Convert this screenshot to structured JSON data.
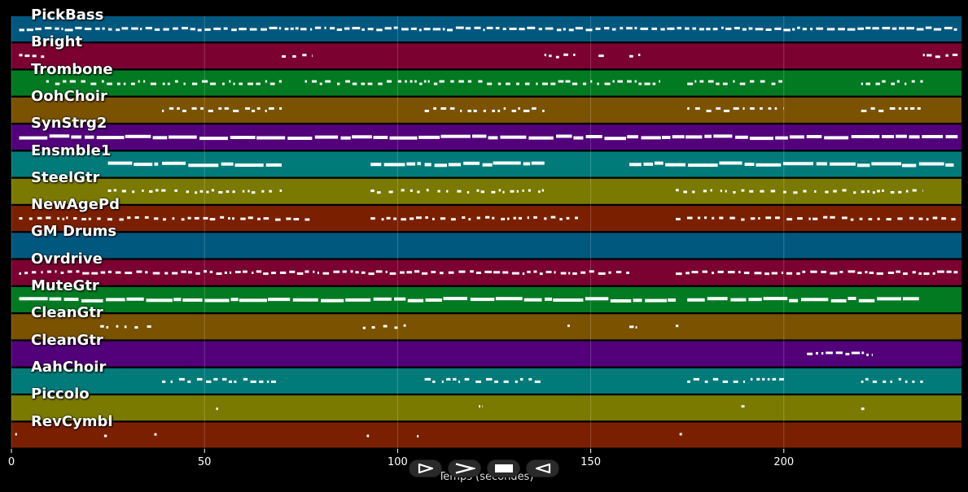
{
  "tracks": [
    {
      "name": "PickBass",
      "color": "#01587F",
      "density": 0.8,
      "rows": 1,
      "seed": 1,
      "notes": [
        [
          2,
          245
        ]
      ]
    },
    {
      "name": "Bright",
      "color": "#7A0130",
      "density": 0.55,
      "rows": 1,
      "seed": 2,
      "notes": [
        [
          2,
          9
        ],
        [
          70,
          78
        ],
        [
          138,
          146
        ],
        [
          152,
          154
        ],
        [
          160,
          163
        ],
        [
          236,
          245
        ]
      ]
    },
    {
      "name": "Trombone",
      "color": "#017A22",
      "density": 0.55,
      "rows": 2,
      "seed": 3,
      "notes": [
        [
          9,
          35
        ],
        [
          36,
          70
        ],
        [
          76,
          125
        ],
        [
          126,
          168
        ],
        [
          175,
          200
        ],
        [
          220,
          236
        ]
      ]
    },
    {
      "name": "OohChoir",
      "color": "#7A5200",
      "density": 0.55,
      "rows": 2,
      "seed": 4,
      "notes": [
        [
          39,
          70
        ],
        [
          107,
          138
        ],
        [
          175,
          200
        ],
        [
          220,
          236
        ]
      ]
    },
    {
      "name": "SynStrg2",
      "color": "#52017A",
      "density": 0.95,
      "rows": 1,
      "seed": 5,
      "notes": [
        [
          2,
          245
        ]
      ]
    },
    {
      "name": "Ensmble1",
      "color": "#017A7A",
      "density": 0.9,
      "rows": 1,
      "seed": 6,
      "notes": [
        [
          25,
          38
        ],
        [
          39,
          70
        ],
        [
          93,
          106
        ],
        [
          107,
          138
        ],
        [
          160,
          244
        ]
      ]
    },
    {
      "name": "SteelGtr",
      "color": "#7A7A01",
      "density": 0.35,
      "rows": 1,
      "seed": 7,
      "notes": [
        [
          25,
          70
        ],
        [
          93,
          138
        ],
        [
          172,
          236
        ]
      ]
    },
    {
      "name": "NewAgePd",
      "color": "#7A2001",
      "density": 0.5,
      "rows": 1,
      "seed": 8,
      "notes": [
        [
          2,
          78
        ],
        [
          93,
          148
        ],
        [
          172,
          245
        ]
      ]
    },
    {
      "name": "GM Drums",
      "color": "#01587F",
      "density": 0.0,
      "rows": 1,
      "seed": 9,
      "notes": []
    },
    {
      "name": "Ovrdrive",
      "color": "#7A0130",
      "density": 0.7,
      "rows": 1,
      "seed": 10,
      "notes": [
        [
          2,
          160
        ],
        [
          172,
          245
        ]
      ]
    },
    {
      "name": "MuteGtr",
      "color": "#017A22",
      "density": 0.9,
      "rows": 1,
      "seed": 11,
      "notes": [
        [
          2,
          172
        ],
        [
          175,
          235
        ]
      ]
    },
    {
      "name": "CleanGtr",
      "color": "#7A5200",
      "density": 0.35,
      "rows": 1,
      "seed": 12,
      "notes": [
        [
          23,
          37
        ],
        [
          91,
          104
        ],
        [
          144,
          145
        ],
        [
          160,
          162
        ],
        [
          172,
          173
        ]
      ]
    },
    {
      "name": "CleanGtr",
      "color": "#52017A",
      "density": 0.85,
      "rows": 1,
      "seed": 13,
      "notes": [
        [
          206,
          223
        ]
      ]
    },
    {
      "name": "AahChoir",
      "color": "#017A7A",
      "density": 0.55,
      "rows": 2,
      "seed": 14,
      "notes": [
        [
          39,
          70
        ],
        [
          107,
          138
        ],
        [
          175,
          200
        ],
        [
          220,
          236
        ]
      ]
    },
    {
      "name": "Piccolo",
      "color": "#7A7A01",
      "density": 0.2,
      "rows": 2,
      "seed": 15,
      "notes": [
        [
          53,
          54
        ],
        [
          121,
          122
        ],
        [
          189,
          190
        ],
        [
          220,
          221
        ]
      ]
    },
    {
      "name": "RevCymbl",
      "color": "#7A2001",
      "density": 0.15,
      "rows": 1,
      "seed": 16,
      "notes": [
        [
          1,
          2
        ],
        [
          24,
          25
        ],
        [
          37,
          38
        ],
        [
          92,
          93
        ],
        [
          105,
          106
        ],
        [
          173,
          174
        ]
      ]
    }
  ],
  "axis": {
    "min": 0,
    "max": 246,
    "ticks": [
      {
        "value": 0,
        "label": "0"
      },
      {
        "value": 50,
        "label": "50"
      },
      {
        "value": 100,
        "label": "100"
      },
      {
        "value": 150,
        "label": "150"
      },
      {
        "value": 200,
        "label": "200"
      }
    ],
    "title": "Temps (secondes)"
  },
  "controls": [
    {
      "name": "play-outline-button",
      "icon": "play-outline-icon"
    },
    {
      "name": "next-button",
      "icon": "chevron-right-icon"
    },
    {
      "name": "stop-button",
      "icon": "stop-icon"
    },
    {
      "name": "back-button",
      "icon": "triangle-left-outline-icon"
    }
  ],
  "colors": {
    "background": "#000000",
    "note": "#FFFFFF",
    "grid": "#FFFFFF"
  }
}
